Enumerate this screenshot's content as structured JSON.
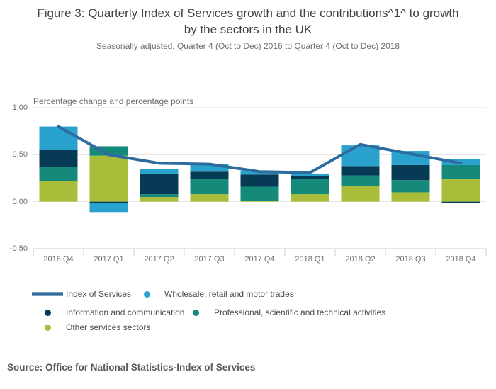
{
  "source": "Source: Office for National Statistics-Index of Services",
  "chart_data": {
    "type": "bar",
    "subtype": "stacked-columns-with-line-overlay",
    "title": "Figure 3: Quarterly Index of Services growth and the contributions^1^ to growth by the sectors in the UK",
    "subtitle": "Seasonally adjusted, Quarter 4 (Oct to Dec) 2016 to Quarter 4 (Oct to Dec) 2018",
    "axis_caption": "Percentage change and percentage points",
    "categories": [
      "2016 Q4",
      "2017 Q1",
      "2017 Q2",
      "2017 Q3",
      "2017 Q4",
      "2018 Q1",
      "2018 Q2",
      "2018 Q3",
      "2018 Q4"
    ],
    "yticks": [
      1.0,
      0.5,
      0.0,
      -0.5
    ],
    "ytick_labels": [
      "1.00",
      "0.50",
      "0.00",
      "-0.50"
    ],
    "ylim": [
      -0.5,
      1.0
    ],
    "grid": true,
    "legend_position": "bottom",
    "line_series": {
      "name": "Index of Services",
      "color": "#2e6b9e",
      "values": [
        0.8,
        0.5,
        0.41,
        0.4,
        0.32,
        0.31,
        0.61,
        0.51,
        0.41
      ]
    },
    "bar_series": [
      {
        "name": "Wholesale, retail and motor trades",
        "color": "#29a2ce",
        "values": [
          0.25,
          -0.1,
          0.05,
          0.08,
          0.04,
          0.03,
          0.22,
          0.15,
          0.06
        ]
      },
      {
        "name": "Information and communication",
        "color": "#073b55",
        "values": [
          0.18,
          -0.01,
          0.22,
          0.08,
          0.13,
          0.03,
          0.1,
          0.16,
          -0.01
        ]
      },
      {
        "name": "Professional, scientific and technical activities",
        "color": "#168a7a",
        "values": [
          0.15,
          0.1,
          0.03,
          0.16,
          0.15,
          0.16,
          0.11,
          0.13,
          0.15
        ]
      },
      {
        "name": "Other services sectors",
        "color": "#a9bd3a",
        "values": [
          0.22,
          0.49,
          0.05,
          0.08,
          0.01,
          0.08,
          0.17,
          0.1,
          0.24
        ]
      }
    ],
    "colors": {
      "gridline": "#e6e6e6",
      "axis_line": "#c3d3dd",
      "title_text": "#414042",
      "muted_text": "#6e6e6e"
    }
  }
}
